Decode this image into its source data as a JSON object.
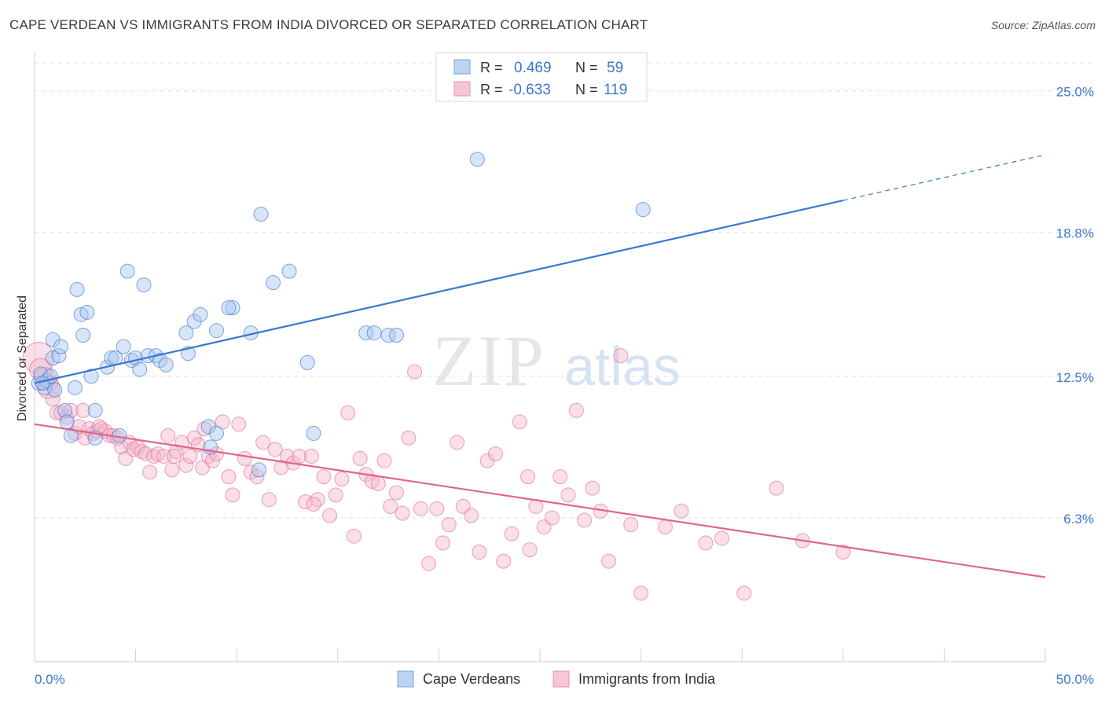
{
  "header": {
    "title": "CAPE VERDEAN VS IMMIGRANTS FROM INDIA DIVORCED OR SEPARATED CORRELATION CHART",
    "source": "Source: ZipAtlas.com"
  },
  "watermark": {
    "zip": "ZIP",
    "atlas": "atlas"
  },
  "colors": {
    "blue": "#3a78d0",
    "blue_fill": "#a9c6ef",
    "pink": "#e0658f",
    "pink_fill": "#f3b6cb",
    "axis_text": "#3a78d0",
    "grid": "#e0e0e0"
  },
  "chart_data": {
    "type": "scatter",
    "title": "CAPE VERDEAN VS IMMIGRANTS FROM INDIA DIVORCED OR SEPARATED CORRELATION CHART",
    "xlabel": "",
    "ylabel": "Divorced or Separated",
    "xlim": [
      0,
      50
    ],
    "ylim": [
      0,
      26.5
    ],
    "x_tick_labels": [
      "0.0%",
      "50.0%"
    ],
    "y_ticks": [
      6.3,
      12.5,
      18.8,
      25.0
    ],
    "y_tick_labels": [
      "6.3%",
      "12.5%",
      "18.8%",
      "25.0%"
    ],
    "grid": "horizontal dashed",
    "legend_position": "top-center",
    "legend": [
      {
        "r_label": "R =",
        "r_value": "0.469",
        "n_label": "N =",
        "n_value": "59"
      },
      {
        "r_label": "R =",
        "r_value": "-0.633",
        "n_label": "N =",
        "n_value": "119"
      }
    ],
    "bottom_legend": [
      "Cape Verdeans",
      "Immigrants from India"
    ],
    "series": [
      {
        "name": "Cape Verdeans",
        "color": "#3a78d0",
        "trend": {
          "x0": 0,
          "y0": 12.2,
          "x1": 40,
          "y1": 20.2,
          "dashed_to_x": 50,
          "dashed_to_y": 22.2
        },
        "points": [
          [
            0.2,
            12.2
          ],
          [
            0.3,
            12.6
          ],
          [
            0.5,
            12.0
          ],
          [
            0.6,
            12.3
          ],
          [
            0.8,
            12.5
          ],
          [
            0.9,
            13.3
          ],
          [
            0.9,
            14.1
          ],
          [
            1.2,
            13.4
          ],
          [
            1.3,
            13.8
          ],
          [
            1.5,
            11.0
          ],
          [
            1.6,
            10.5
          ],
          [
            1.8,
            9.9
          ],
          [
            2.0,
            12.0
          ],
          [
            2.1,
            16.3
          ],
          [
            2.3,
            15.2
          ],
          [
            2.4,
            14.3
          ],
          [
            2.6,
            15.3
          ],
          [
            2.8,
            12.5
          ],
          [
            3.0,
            11.0
          ],
          [
            3.0,
            9.8
          ],
          [
            3.6,
            12.9
          ],
          [
            3.8,
            13.3
          ],
          [
            4.0,
            13.3
          ],
          [
            4.2,
            9.9
          ],
          [
            4.4,
            13.8
          ],
          [
            4.6,
            17.1
          ],
          [
            4.8,
            13.2
          ],
          [
            5.0,
            13.3
          ],
          [
            5.2,
            12.8
          ],
          [
            5.4,
            16.5
          ],
          [
            5.6,
            13.4
          ],
          [
            6.0,
            13.4
          ],
          [
            6.2,
            13.2
          ],
          [
            6.5,
            13.0
          ],
          [
            7.5,
            14.4
          ],
          [
            7.6,
            13.5
          ],
          [
            7.9,
            14.9
          ],
          [
            8.2,
            15.2
          ],
          [
            8.6,
            10.3
          ],
          [
            9.0,
            14.5
          ],
          [
            9.0,
            10.0
          ],
          [
            8.7,
            9.4
          ],
          [
            9.8,
            15.5
          ],
          [
            9.6,
            15.5
          ],
          [
            10.7,
            14.4
          ],
          [
            11.1,
            8.4
          ],
          [
            11.2,
            19.6
          ],
          [
            11.8,
            16.6
          ],
          [
            12.6,
            17.1
          ],
          [
            13.5,
            13.1
          ],
          [
            13.8,
            10.0
          ],
          [
            16.4,
            14.4
          ],
          [
            17.5,
            14.3
          ],
          [
            17.9,
            14.3
          ],
          [
            16.8,
            14.4
          ],
          [
            21.9,
            22.0
          ],
          [
            30.1,
            19.8
          ],
          [
            0.4,
            12.2
          ],
          [
            1.0,
            11.9
          ]
        ]
      },
      {
        "name": "Immigrants from India",
        "color": "#e0658f",
        "trend": {
          "x0": 0,
          "y0": 10.4,
          "x1": 50,
          "y1": 3.7
        },
        "points": [
          [
            0.2,
            13.3
          ],
          [
            0.3,
            12.8
          ],
          [
            0.5,
            12.4
          ],
          [
            0.7,
            12.0
          ],
          [
            0.9,
            11.5
          ],
          [
            1.1,
            10.9
          ],
          [
            1.3,
            10.9
          ],
          [
            1.6,
            10.7
          ],
          [
            1.8,
            11.0
          ],
          [
            2.0,
            10.0
          ],
          [
            2.2,
            10.3
          ],
          [
            2.5,
            9.8
          ],
          [
            2.7,
            10.2
          ],
          [
            2.9,
            10.0
          ],
          [
            3.1,
            10.1
          ],
          [
            3.3,
            10.2
          ],
          [
            3.5,
            10.1
          ],
          [
            3.7,
            9.9
          ],
          [
            3.9,
            9.9
          ],
          [
            4.1,
            9.8
          ],
          [
            4.3,
            9.4
          ],
          [
            4.5,
            8.9
          ],
          [
            4.7,
            9.6
          ],
          [
            4.9,
            9.3
          ],
          [
            5.1,
            9.4
          ],
          [
            5.3,
            9.2
          ],
          [
            5.5,
            9.1
          ],
          [
            5.7,
            8.3
          ],
          [
            5.9,
            9.0
          ],
          [
            6.1,
            9.1
          ],
          [
            6.4,
            9.0
          ],
          [
            6.6,
            9.9
          ],
          [
            6.8,
            8.4
          ],
          [
            7.0,
            9.2
          ],
          [
            7.3,
            9.6
          ],
          [
            7.5,
            8.6
          ],
          [
            7.7,
            9.0
          ],
          [
            7.9,
            9.8
          ],
          [
            8.1,
            9.5
          ],
          [
            8.3,
            8.5
          ],
          [
            8.6,
            9.0
          ],
          [
            8.8,
            8.8
          ],
          [
            9.0,
            9.1
          ],
          [
            9.3,
            10.5
          ],
          [
            9.6,
            8.1
          ],
          [
            9.8,
            7.3
          ],
          [
            10.1,
            10.4
          ],
          [
            10.4,
            8.9
          ],
          [
            10.7,
            8.3
          ],
          [
            11.0,
            8.1
          ],
          [
            11.3,
            9.6
          ],
          [
            11.6,
            7.1
          ],
          [
            11.9,
            9.3
          ],
          [
            12.2,
            8.5
          ],
          [
            12.5,
            9.0
          ],
          [
            12.8,
            8.7
          ],
          [
            13.1,
            9.0
          ],
          [
            13.4,
            7.0
          ],
          [
            13.7,
            9.0
          ],
          [
            14.0,
            7.1
          ],
          [
            14.3,
            8.1
          ],
          [
            14.6,
            6.4
          ],
          [
            14.9,
            7.3
          ],
          [
            15.2,
            8.0
          ],
          [
            15.5,
            10.9
          ],
          [
            15.8,
            5.5
          ],
          [
            16.1,
            8.9
          ],
          [
            16.4,
            8.2
          ],
          [
            16.7,
            7.9
          ],
          [
            17.0,
            7.8
          ],
          [
            17.3,
            8.8
          ],
          [
            17.6,
            6.8
          ],
          [
            17.9,
            7.4
          ],
          [
            18.2,
            6.5
          ],
          [
            18.5,
            9.8
          ],
          [
            18.8,
            12.7
          ],
          [
            19.1,
            6.7
          ],
          [
            19.5,
            4.3
          ],
          [
            19.9,
            6.7
          ],
          [
            20.2,
            5.2
          ],
          [
            20.5,
            6.0
          ],
          [
            20.9,
            9.6
          ],
          [
            21.2,
            6.8
          ],
          [
            21.6,
            6.4
          ],
          [
            22.0,
            4.8
          ],
          [
            22.4,
            8.8
          ],
          [
            22.8,
            9.1
          ],
          [
            23.2,
            4.4
          ],
          [
            23.6,
            5.6
          ],
          [
            24.0,
            10.5
          ],
          [
            24.4,
            8.1
          ],
          [
            24.8,
            6.8
          ],
          [
            25.2,
            5.9
          ],
          [
            25.6,
            6.3
          ],
          [
            26.0,
            8.1
          ],
          [
            26.4,
            7.3
          ],
          [
            26.8,
            11.0
          ],
          [
            27.2,
            6.2
          ],
          [
            27.6,
            7.6
          ],
          [
            28.0,
            6.6
          ],
          [
            28.4,
            4.4
          ],
          [
            29.0,
            13.4
          ],
          [
            29.5,
            6.0
          ],
          [
            30.0,
            3.0
          ],
          [
            31.2,
            5.9
          ],
          [
            32.0,
            6.6
          ],
          [
            33.2,
            5.2
          ],
          [
            34.0,
            5.4
          ],
          [
            35.1,
            3.0
          ],
          [
            36.7,
            7.6
          ],
          [
            38.0,
            5.3
          ],
          [
            40.0,
            4.8
          ],
          [
            24.5,
            4.9
          ],
          [
            13.8,
            6.9
          ],
          [
            8.4,
            10.2
          ],
          [
            2.4,
            11.0
          ],
          [
            0.8,
            12.2
          ],
          [
            3.2,
            10.3
          ],
          [
            6.9,
            9.0
          ]
        ]
      }
    ]
  }
}
